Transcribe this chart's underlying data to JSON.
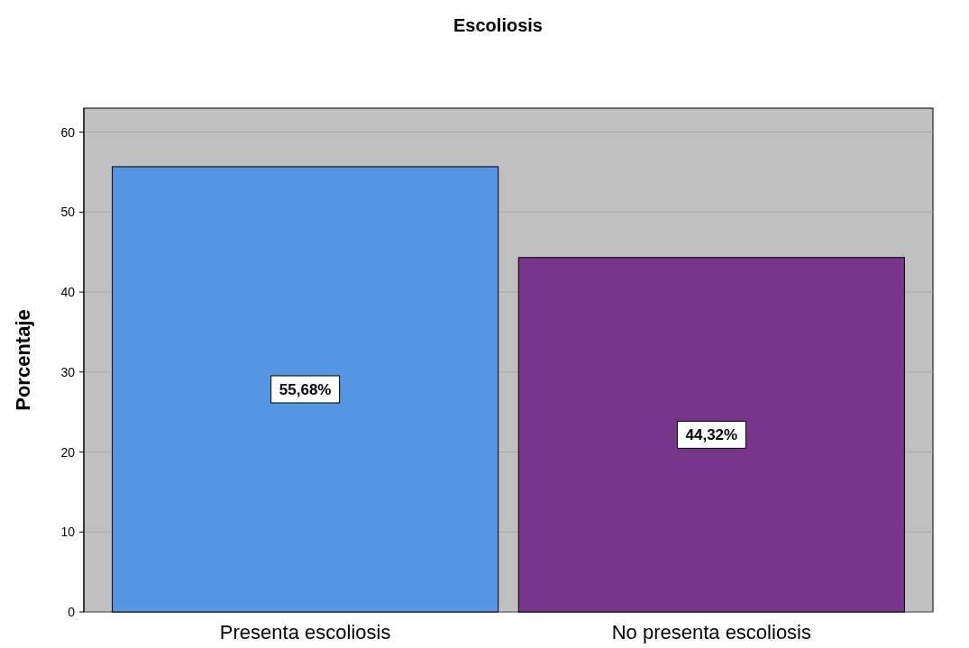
{
  "chart_data": {
    "type": "bar",
    "title": "Escoliosis",
    "ylabel": "Porcentaje",
    "categories": [
      "Presenta escoliosis",
      "No presenta escoliosis"
    ],
    "values": [
      55.68,
      44.32
    ],
    "colors": [
      "#5596e3",
      "#77368c"
    ],
    "value_labels": [
      "55,68%",
      "44,32%"
    ],
    "ylim": [
      0,
      63
    ],
    "yticks": [
      0,
      10,
      20,
      30,
      40,
      50,
      60
    ],
    "grid": "y"
  }
}
